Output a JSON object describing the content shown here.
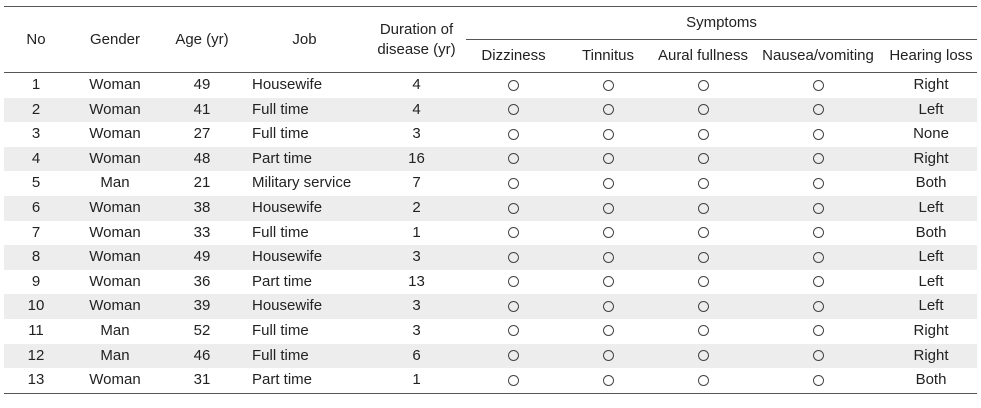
{
  "headers": {
    "no": "No",
    "gender": "Gender",
    "age": "Age (yr)",
    "job": "Job",
    "duration_line1": "Duration of",
    "duration_line2": "disease (yr)",
    "symptoms": "Symptoms",
    "dizziness": "Dizziness",
    "tinnitus": "Tinnitus",
    "aural_fullness": "Aural fullness",
    "nausea": "Nausea/vomiting",
    "hearing_loss": "Hearing loss"
  },
  "symbols": {
    "present": "circle-icon"
  },
  "rows": [
    {
      "no": "1",
      "gender": "Woman",
      "age": "49",
      "job": "Housewife",
      "duration": "4",
      "hearing_loss": "Right"
    },
    {
      "no": "2",
      "gender": "Woman",
      "age": "41",
      "job": "Full time",
      "duration": "4",
      "hearing_loss": "Left"
    },
    {
      "no": "3",
      "gender": "Woman",
      "age": "27",
      "job": "Full time",
      "duration": "3",
      "hearing_loss": "None"
    },
    {
      "no": "4",
      "gender": "Woman",
      "age": "48",
      "job": "Part time",
      "duration": "16",
      "hearing_loss": "Right"
    },
    {
      "no": "5",
      "gender": "Man",
      "age": "21",
      "job": "Military service",
      "duration": "7",
      "hearing_loss": "Both"
    },
    {
      "no": "6",
      "gender": "Woman",
      "age": "38",
      "job": "Housewife",
      "duration": "2",
      "hearing_loss": "Left"
    },
    {
      "no": "7",
      "gender": "Woman",
      "age": "33",
      "job": "Full time",
      "duration": "1",
      "hearing_loss": "Both"
    },
    {
      "no": "8",
      "gender": "Woman",
      "age": "49",
      "job": "Housewife",
      "duration": "3",
      "hearing_loss": "Left"
    },
    {
      "no": "9",
      "gender": "Woman",
      "age": "36",
      "job": "Part time",
      "duration": "13",
      "hearing_loss": "Left"
    },
    {
      "no": "10",
      "gender": "Woman",
      "age": "39",
      "job": "Housewife",
      "duration": "3",
      "hearing_loss": "Left"
    },
    {
      "no": "11",
      "gender": "Man",
      "age": "52",
      "job": "Full time",
      "duration": "3",
      "hearing_loss": "Right"
    },
    {
      "no": "12",
      "gender": "Man",
      "age": "46",
      "job": "Full time",
      "duration": "6",
      "hearing_loss": "Right"
    },
    {
      "no": "13",
      "gender": "Woman",
      "age": "31",
      "job": "Part time",
      "duration": "1",
      "hearing_loss": "Both"
    }
  ]
}
